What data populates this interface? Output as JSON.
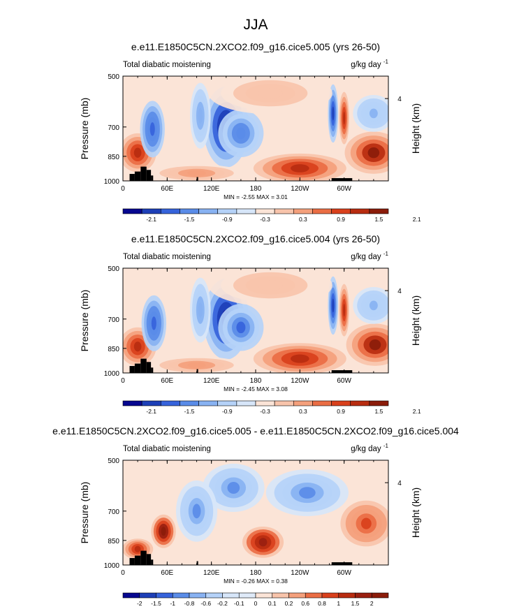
{
  "figure": {
    "title": "JJA"
  },
  "chart_data": [
    {
      "type": "heatmap",
      "title": "e.e11.E1850C5CN.2XCO2.f09_g16.cice5.005 (yrs 26-50)",
      "left_label": "Total diabatic moistening",
      "units": "g/kg day",
      "units_exp": "-1",
      "ylabel": "Pressure (mb)",
      "ylabel_right": "Height (km)",
      "xtick_labels": [
        "0",
        "60E",
        "120E",
        "180",
        "120W",
        "60W"
      ],
      "ytick_labels": [
        "500",
        "700",
        "850",
        "1000"
      ],
      "right_tick_labels": [
        "4"
      ],
      "xlim": [
        0,
        360
      ],
      "ylim": [
        1000,
        500
      ],
      "stats": "MIN = -2.55   MAX =  3.01",
      "colorbar_labels": [
        "-2.1",
        "-1.5",
        "-0.9",
        "-0.3",
        "0.3",
        "0.9",
        "1.5",
        "2.1"
      ],
      "colorbar_colors": [
        "#06078f",
        "#1d3fb7",
        "#3663db",
        "#5a8ce8",
        "#88b2f2",
        "#b5d2f8",
        "#d7e6f9",
        "#fbe4d7",
        "#f8c4ab",
        "#f4a07c",
        "#ea6d44",
        "#d9401c",
        "#b82c10",
        "#8b1c0a"
      ],
      "features": [
        {
          "lon": 340,
          "p": 830,
          "v": 1.9,
          "rx": 28,
          "rp": 120
        },
        {
          "lon": 240,
          "p": 920,
          "v": 1.8,
          "rx": 45,
          "rp": 90
        },
        {
          "lon": 20,
          "p": 830,
          "v": 1.6,
          "rx": 18,
          "rp": 110
        },
        {
          "lon": 40,
          "p": 710,
          "v": -1.4,
          "rx": 12,
          "rp": 140
        },
        {
          "lon": 140,
          "p": 700,
          "v": -2.0,
          "rx": 22,
          "rp": 200
        },
        {
          "lon": 160,
          "p": 730,
          "v": -1.1,
          "rx": 22,
          "rp": 120
        },
        {
          "lon": 285,
          "p": 640,
          "v": -1.5,
          "rx": 5,
          "rp": 130
        },
        {
          "lon": 300,
          "p": 660,
          "v": 1.5,
          "rx": 5,
          "rp": 120
        },
        {
          "lon": 105,
          "p": 650,
          "v": -0.8,
          "rx": 10,
          "rp": 150
        },
        {
          "lon": 200,
          "p": 560,
          "v": 0.3,
          "rx": 60,
          "rp": 80
        },
        {
          "lon": 340,
          "p": 640,
          "v": -0.6,
          "rx": 20,
          "rp": 80
        },
        {
          "lon": 100,
          "p": 950,
          "v": 0.8,
          "rx": 45,
          "rp": 50
        }
      ],
      "topography": [
        {
          "lon0": 9,
          "lon1": 16,
          "p": 955
        },
        {
          "lon0": 16,
          "lon1": 24,
          "p": 940
        },
        {
          "lon0": 24,
          "lon1": 32,
          "p": 910
        },
        {
          "lon0": 32,
          "lon1": 38,
          "p": 930
        },
        {
          "lon0": 38,
          "lon1": 41,
          "p": 965
        },
        {
          "lon0": 100,
          "lon1": 102,
          "p": 975
        },
        {
          "lon0": 283,
          "lon1": 311,
          "p": 982
        }
      ]
    },
    {
      "type": "heatmap",
      "title": "e.e11.E1850C5CN.2XCO2.f09_g16.cice5.004 (yrs 26-50)",
      "left_label": "Total diabatic moistening",
      "units": "g/kg day",
      "units_exp": "-1",
      "ylabel": "Pressure (mb)",
      "ylabel_right": "Height (km)",
      "xtick_labels": [
        "0",
        "60E",
        "120E",
        "180",
        "120W",
        "60W"
      ],
      "ytick_labels": [
        "500",
        "700",
        "850",
        "1000"
      ],
      "right_tick_labels": [
        "4"
      ],
      "xlim": [
        0,
        360
      ],
      "ylim": [
        1000,
        500
      ],
      "stats": "MIN = -2.45   MAX =  3.08",
      "colorbar_labels": [
        "-2.1",
        "-1.5",
        "-0.9",
        "-0.3",
        "0.3",
        "0.9",
        "1.5",
        "2.1"
      ],
      "colorbar_colors": [
        "#06078f",
        "#1d3fb7",
        "#3663db",
        "#5a8ce8",
        "#88b2f2",
        "#b5d2f8",
        "#d7e6f9",
        "#fbe4d7",
        "#f8c4ab",
        "#f4a07c",
        "#ea6d44",
        "#d9401c",
        "#b82c10",
        "#8b1c0a"
      ],
      "features": [
        {
          "lon": 342,
          "p": 830,
          "v": 1.9,
          "rx": 28,
          "rp": 120
        },
        {
          "lon": 240,
          "p": 910,
          "v": 1.8,
          "rx": 45,
          "rp": 95
        },
        {
          "lon": 20,
          "p": 840,
          "v": 1.5,
          "rx": 18,
          "rp": 110
        },
        {
          "lon": 42,
          "p": 720,
          "v": -1.4,
          "rx": 12,
          "rp": 140
        },
        {
          "lon": 140,
          "p": 700,
          "v": -2.0,
          "rx": 22,
          "rp": 200
        },
        {
          "lon": 160,
          "p": 740,
          "v": -1.2,
          "rx": 22,
          "rp": 120
        },
        {
          "lon": 285,
          "p": 640,
          "v": -1.6,
          "rx": 5,
          "rp": 130
        },
        {
          "lon": 300,
          "p": 660,
          "v": 1.6,
          "rx": 5,
          "rp": 120
        },
        {
          "lon": 105,
          "p": 660,
          "v": -0.8,
          "rx": 10,
          "rp": 150
        },
        {
          "lon": 200,
          "p": 560,
          "v": 0.3,
          "rx": 60,
          "rp": 80
        },
        {
          "lon": 340,
          "p": 640,
          "v": -0.6,
          "rx": 20,
          "rp": 80
        },
        {
          "lon": 100,
          "p": 950,
          "v": 0.8,
          "rx": 45,
          "rp": 50
        }
      ],
      "topography": [
        {
          "lon0": 9,
          "lon1": 16,
          "p": 955
        },
        {
          "lon0": 16,
          "lon1": 24,
          "p": 940
        },
        {
          "lon0": 24,
          "lon1": 32,
          "p": 910
        },
        {
          "lon0": 32,
          "lon1": 38,
          "p": 930
        },
        {
          "lon0": 38,
          "lon1": 41,
          "p": 965
        },
        {
          "lon0": 100,
          "lon1": 102,
          "p": 975
        },
        {
          "lon0": 283,
          "lon1": 311,
          "p": 982
        }
      ]
    },
    {
      "type": "heatmap",
      "title": "e.e11.E1850C5CN.2XCO2.f09_g16.cice5.005 - e.e11.E1850C5CN.2XCO2.f09_g16.cice5.004",
      "left_label": "Total diabatic moistening",
      "units": "g/kg day",
      "units_exp": "-1",
      "ylabel": "Pressure (mb)",
      "ylabel_right": "Height (km)",
      "xtick_labels": [
        "0",
        "60E",
        "120E",
        "180",
        "120W",
        "60W"
      ],
      "ytick_labels": [
        "500",
        "700",
        "850",
        "1000"
      ],
      "right_tick_labels": [
        "4"
      ],
      "xlim": [
        0,
        360
      ],
      "ylim": [
        1000,
        500
      ],
      "stats": "MIN = -0.26   MAX =  0.38",
      "colorbar_labels": [
        "-2",
        "-1.5",
        "-1",
        "-0.8",
        "-0.6",
        "-0.2",
        "-0.1",
        "0",
        "0.1",
        "0.2",
        "0.6",
        "0.8",
        "1",
        "1.5",
        "2"
      ],
      "colorbar_colors": [
        "#06078f",
        "#1d3fb7",
        "#3663db",
        "#5a8ce8",
        "#88b2f2",
        "#b5d2f8",
        "#d7e6f9",
        "#dfeaf8",
        "#fbe4d7",
        "#f8c4ab",
        "#f4a07c",
        "#ea6d44",
        "#d9401c",
        "#b82c10",
        "#9a2010",
        "#8b1c0a"
      ],
      "features": [
        {
          "lon": 55,
          "p": 800,
          "v": 0.22,
          "rx": 12,
          "rp": 90
        },
        {
          "lon": 190,
          "p": 860,
          "v": 0.2,
          "rx": 20,
          "rp": 90
        },
        {
          "lon": 150,
          "p": 600,
          "v": -0.12,
          "rx": 30,
          "rp": 100
        },
        {
          "lon": 250,
          "p": 620,
          "v": -0.12,
          "rx": 40,
          "rp": 100
        },
        {
          "lon": 330,
          "p": 760,
          "v": 0.12,
          "rx": 25,
          "rp": 120
        },
        {
          "lon": 20,
          "p": 900,
          "v": 0.15,
          "rx": 15,
          "rp": 60
        },
        {
          "lon": 100,
          "p": 700,
          "v": -0.12,
          "rx": 20,
          "rp": 150
        }
      ],
      "topography": [
        {
          "lon0": 9,
          "lon1": 16,
          "p": 955
        },
        {
          "lon0": 16,
          "lon1": 24,
          "p": 940
        },
        {
          "lon0": 24,
          "lon1": 32,
          "p": 910
        },
        {
          "lon0": 32,
          "lon1": 38,
          "p": 930
        },
        {
          "lon0": 38,
          "lon1": 41,
          "p": 965
        },
        {
          "lon0": 100,
          "lon1": 102,
          "p": 975
        },
        {
          "lon0": 283,
          "lon1": 311,
          "p": 982
        }
      ]
    }
  ]
}
